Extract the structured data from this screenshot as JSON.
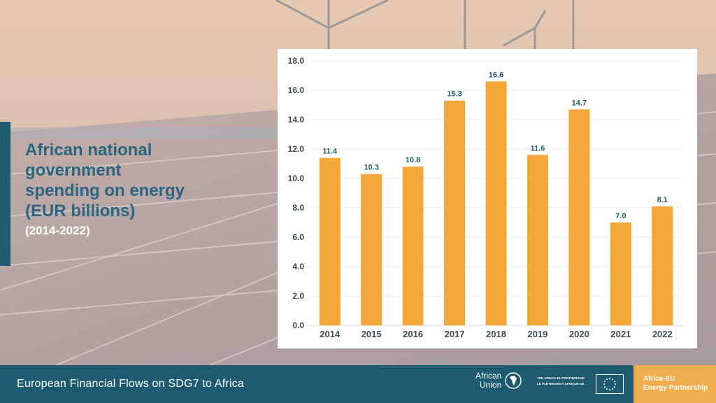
{
  "title": {
    "lines": [
      "African national",
      "government",
      "spending on energy",
      "(EUR billions)"
    ],
    "subtitle": "(2014-2022)"
  },
  "chart_data": {
    "type": "bar",
    "categories": [
      "2014",
      "2015",
      "2016",
      "2017",
      "2018",
      "2019",
      "2020",
      "2021",
      "2022"
    ],
    "values": [
      11.4,
      10.3,
      10.8,
      15.3,
      16.6,
      11.6,
      14.7,
      7.0,
      8.1
    ],
    "data_labels": [
      "11.4",
      "10.3",
      "10.8",
      "15.3",
      "16.6",
      "11.6",
      "14.7",
      "7.0",
      "8.1"
    ],
    "yticks": [
      "0.0",
      "2.0",
      "4.0",
      "6.0",
      "8.0",
      "10.0",
      "12.0",
      "14.0",
      "16.0",
      "18.0"
    ],
    "ylim": [
      0,
      18
    ],
    "grid": true,
    "bar_color": "#f5a83a",
    "label_color": "#1f5a6e",
    "title": "",
    "xlabel": "",
    "ylabel": ""
  },
  "footer": {
    "text": "European Financial Flows on SDG7 to Africa",
    "au_logo_lines": [
      "African",
      "Union"
    ],
    "partnership_lines": [
      "THE AFRICA-EU PARTNERSHIP",
      "LE PARTENARIAT AFRIQUE-UE"
    ],
    "aeep_lines": [
      "Africa-EU",
      "Energy Partnership"
    ]
  },
  "colors": {
    "footer_bg": "#1e5a70",
    "accent": "#f0ad4e",
    "title_text": "#2a6680"
  }
}
